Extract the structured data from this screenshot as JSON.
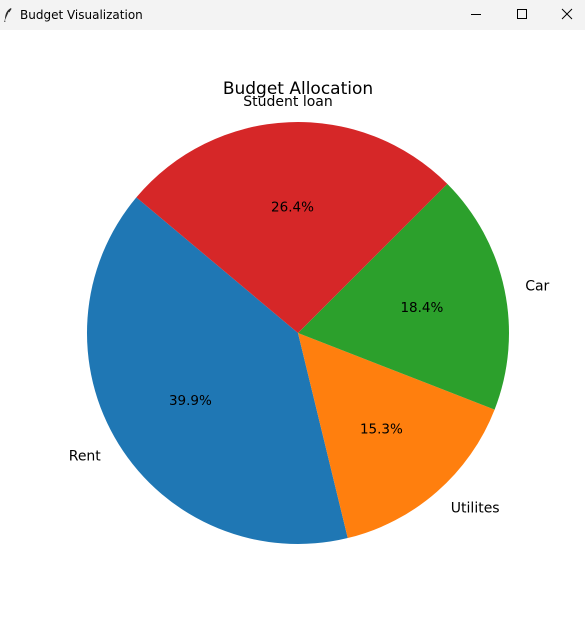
{
  "window": {
    "title": "Budget Visualization",
    "icon": "feather-icon",
    "controls": [
      "minimize-icon",
      "maximize-icon",
      "close-icon"
    ]
  },
  "chart_data": {
    "type": "pie",
    "title": "Budget Allocation",
    "categories": [
      "Rent",
      "Utilites",
      "Car",
      "Student loan"
    ],
    "values": [
      39.9,
      15.3,
      18.4,
      26.4
    ],
    "value_labels": [
      "39.9%",
      "15.3%",
      "18.4%",
      "26.4%"
    ],
    "colors": [
      "#1f77b4",
      "#ff7f0e",
      "#2ca02c",
      "#d62728"
    ],
    "start_angle_deg": 140,
    "direction": "counterclockwise",
    "legend": "none"
  }
}
